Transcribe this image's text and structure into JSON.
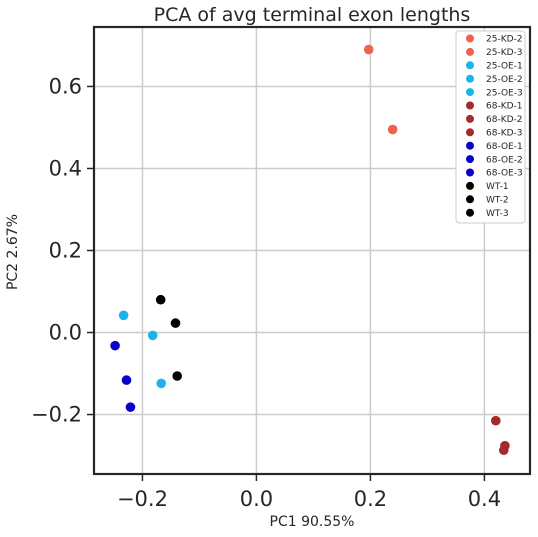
{
  "chart_data": {
    "type": "scatter",
    "title": "PCA of avg terminal exon lengths",
    "xlabel": "PC1 90.55%",
    "ylabel": "PC2 2.67%",
    "xlim": [
      -0.285,
      0.48
    ],
    "ylim": [
      -0.345,
      0.745
    ],
    "x_ticks": [
      -0.2,
      0.0,
      0.2,
      0.4
    ],
    "x_tick_labels": [
      "−0.2",
      "0.0",
      "0.2",
      "0.4"
    ],
    "y_ticks": [
      -0.2,
      0.0,
      0.2,
      0.4,
      0.6
    ],
    "y_tick_labels": [
      "−0.2",
      "0.0",
      "0.2",
      "0.4",
      "0.6"
    ],
    "grid": true,
    "legend_position": "top-right",
    "series": [
      {
        "name": "25-KD-2",
        "color": "#f1624d",
        "x": [
          0.197
        ],
        "y": [
          0.69
        ]
      },
      {
        "name": "25-KD-3",
        "color": "#f1624d",
        "x": [
          0.239
        ],
        "y": [
          0.495
        ]
      },
      {
        "name": "25-OE-1",
        "color": "#1ab4ea",
        "x": [
          -0.233
        ],
        "y": [
          0.042
        ]
      },
      {
        "name": "25-OE-2",
        "color": "#1ab4ea",
        "x": [
          -0.182
        ],
        "y": [
          -0.007
        ]
      },
      {
        "name": "25-OE-3",
        "color": "#1ab4ea",
        "x": [
          -0.167
        ],
        "y": [
          -0.124
        ]
      },
      {
        "name": "68-KD-1",
        "color": "#a52a2a",
        "x": [
          0.42
        ],
        "y": [
          -0.215
        ]
      },
      {
        "name": "68-KD-2",
        "color": "#a52a2a",
        "x": [
          0.436
        ],
        "y": [
          -0.276
        ]
      },
      {
        "name": "68-KD-3",
        "color": "#a52a2a",
        "x": [
          0.434
        ],
        "y": [
          -0.287
        ]
      },
      {
        "name": "68-OE-1",
        "color": "#0a00c8",
        "x": [
          -0.248
        ],
        "y": [
          -0.032
        ]
      },
      {
        "name": "68-OE-2",
        "color": "#0a00c8",
        "x": [
          -0.228
        ],
        "y": [
          -0.116
        ]
      },
      {
        "name": "68-OE-3",
        "color": "#0a00c8",
        "x": [
          -0.221
        ],
        "y": [
          -0.182
        ]
      },
      {
        "name": "WT-1",
        "color": "#000000",
        "x": [
          -0.168
        ],
        "y": [
          0.08
        ]
      },
      {
        "name": "WT-2",
        "color": "#000000",
        "x": [
          -0.142
        ],
        "y": [
          0.023
        ]
      },
      {
        "name": "WT-3",
        "color": "#000000",
        "x": [
          -0.139
        ],
        "y": [
          -0.106
        ]
      }
    ]
  }
}
